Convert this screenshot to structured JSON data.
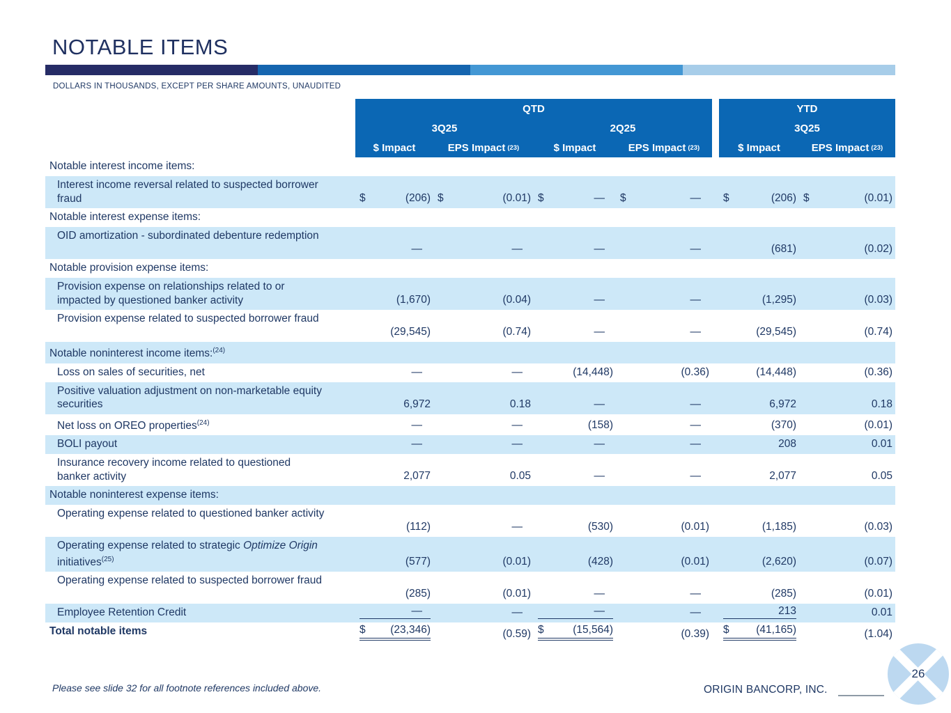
{
  "page": {
    "title": "NOTABLE ITEMS",
    "subtitle": "DOLLARS IN THOUSANDS, EXCEPT PER SHARE AMOUNTS, UNAUDITED",
    "footer_note": "Please see slide 32 for all footnote references included above.",
    "footer_brand": "ORIGIN BANCORP, INC.",
    "page_number": "26"
  },
  "colors": {
    "navy_text": "#1F3864",
    "title_navy": "#1F3060",
    "header_blue": "#0B67B4",
    "row_blue": "#CDE8F8",
    "badge_blue": "#BCD8F0",
    "bar_segments": [
      "#262C66",
      "#1565AF",
      "#4397D4",
      "#A7CDE9"
    ]
  },
  "table": {
    "groups": {
      "qtd": "QTD",
      "ytd": "YTD"
    },
    "periods": {
      "q3": "3Q25",
      "q2": "2Q25",
      "ytd_q3": "3Q25"
    },
    "col_headers": {
      "dollar": "$ Impact",
      "eps": "EPS Impact",
      "eps_sup": "(23)"
    },
    "rows": [
      {
        "type": "section",
        "shade": false,
        "parts": [
          {
            "t": "Notable interest income items:"
          }
        ]
      },
      {
        "type": "item",
        "lines": 2,
        "shade": true,
        "parts": [
          {
            "t": "Interest income reversal related to suspected borrower fraud"
          }
        ],
        "values": [
          {
            "d": "$",
            "v": "(206)"
          },
          {
            "d": "$",
            "v": "(0.01)"
          },
          {
            "d": "$",
            "v": "—"
          },
          {
            "d": "$",
            "v": "—"
          },
          {
            "d": "$",
            "v": "(206)"
          },
          {
            "d": "$",
            "v": "(0.01)"
          }
        ]
      },
      {
        "type": "section",
        "shade": false,
        "parts": [
          {
            "t": "Notable interest expense items:"
          }
        ]
      },
      {
        "type": "item",
        "lines": 2,
        "shade": true,
        "parts": [
          {
            "t": "OID amortization - subordinated debenture redemption"
          }
        ],
        "values": [
          {
            "v": "—"
          },
          {
            "v": "—"
          },
          {
            "v": "—"
          },
          {
            "v": "—"
          },
          {
            "v": "(681)"
          },
          {
            "v": "(0.02)"
          }
        ]
      },
      {
        "type": "section",
        "shade": false,
        "parts": [
          {
            "t": "Notable provision expense items:"
          }
        ]
      },
      {
        "type": "item",
        "lines": 2,
        "shade": true,
        "parts": [
          {
            "t": "Provision expense on relationships related to or impacted by questioned banker activity"
          }
        ],
        "values": [
          {
            "v": "(1,670)"
          },
          {
            "v": "(0.04)"
          },
          {
            "v": "—"
          },
          {
            "v": "—"
          },
          {
            "v": "(1,295)"
          },
          {
            "v": "(0.03)"
          }
        ]
      },
      {
        "type": "item",
        "lines": 2,
        "shade": false,
        "parts": [
          {
            "t": "Provision expense related to suspected borrower fraud"
          }
        ],
        "values": [
          {
            "v": "(29,545)"
          },
          {
            "v": "(0.74)"
          },
          {
            "v": "—"
          },
          {
            "v": "—"
          },
          {
            "v": "(29,545)"
          },
          {
            "v": "(0.74)"
          }
        ]
      },
      {
        "type": "section",
        "shade": true,
        "parts": [
          {
            "t": "Notable noninterest income items:"
          },
          {
            "t": "(24)",
            "sup": true
          }
        ]
      },
      {
        "type": "item",
        "lines": 1,
        "shade": false,
        "parts": [
          {
            "t": "Loss on sales of securities, net"
          }
        ],
        "values": [
          {
            "v": "—"
          },
          {
            "v": "—"
          },
          {
            "v": "(14,448)"
          },
          {
            "v": "(0.36)"
          },
          {
            "v": "(14,448)"
          },
          {
            "v": "(0.36)"
          }
        ]
      },
      {
        "type": "item",
        "lines": 2,
        "shade": true,
        "parts": [
          {
            "t": "Positive valuation adjustment on non-marketable equity securities"
          }
        ],
        "values": [
          {
            "v": "6,972"
          },
          {
            "v": "0.18"
          },
          {
            "v": "—"
          },
          {
            "v": "—"
          },
          {
            "v": "6,972"
          },
          {
            "v": "0.18"
          }
        ]
      },
      {
        "type": "item",
        "lines": 1,
        "shade": false,
        "parts": [
          {
            "t": "Net loss on OREO properties"
          },
          {
            "t": "(24)",
            "sup": true
          }
        ],
        "values": [
          {
            "v": "—"
          },
          {
            "v": "—"
          },
          {
            "v": "(158)"
          },
          {
            "v": "—"
          },
          {
            "v": "(370)"
          },
          {
            "v": "(0.01)"
          }
        ]
      },
      {
        "type": "item",
        "lines": 1,
        "shade": true,
        "parts": [
          {
            "t": "BOLI payout"
          }
        ],
        "values": [
          {
            "v": "—"
          },
          {
            "v": "—"
          },
          {
            "v": "—"
          },
          {
            "v": "—"
          },
          {
            "v": "208"
          },
          {
            "v": "0.01"
          }
        ]
      },
      {
        "type": "item",
        "lines": 2,
        "shade": false,
        "parts": [
          {
            "t": "Insurance recovery income related to questioned banker activity"
          }
        ],
        "values": [
          {
            "v": "2,077"
          },
          {
            "v": "0.05"
          },
          {
            "v": "—"
          },
          {
            "v": "—"
          },
          {
            "v": "2,077"
          },
          {
            "v": "0.05"
          }
        ]
      },
      {
        "type": "section",
        "shade": true,
        "parts": [
          {
            "t": "Notable noninterest expense items:"
          }
        ]
      },
      {
        "type": "item",
        "lines": 2,
        "shade": false,
        "parts": [
          {
            "t": "Operating expense related to questioned banker activity"
          }
        ],
        "values": [
          {
            "v": "(112)"
          },
          {
            "v": "—"
          },
          {
            "v": "(530)"
          },
          {
            "v": "(0.01)"
          },
          {
            "v": "(1,185)"
          },
          {
            "v": "(0.03)"
          }
        ]
      },
      {
        "type": "item",
        "lines": 2,
        "shade": true,
        "parts": [
          {
            "t": "Operating expense related to strategic "
          },
          {
            "t": "Optimize Origin",
            "i": true
          },
          {
            "t": " initiatives"
          },
          {
            "t": "(25)",
            "sup": true
          }
        ],
        "values": [
          {
            "v": "(577)"
          },
          {
            "v": "(0.01)"
          },
          {
            "v": "(428)"
          },
          {
            "v": "(0.01)"
          },
          {
            "v": "(2,620)"
          },
          {
            "v": "(0.07)"
          }
        ]
      },
      {
        "type": "item",
        "lines": 2,
        "shade": false,
        "parts": [
          {
            "t": "Operating expense related to suspected borrower fraud"
          }
        ],
        "values": [
          {
            "v": "(285)"
          },
          {
            "v": "(0.01)"
          },
          {
            "v": "—"
          },
          {
            "v": "—"
          },
          {
            "v": "(285)"
          },
          {
            "v": "(0.01)"
          }
        ]
      },
      {
        "type": "item",
        "lines": 1,
        "shade": true,
        "parts": [
          {
            "t": "Employee Retention Credit"
          }
        ],
        "values": [
          {
            "v": "—",
            "rule": "single"
          },
          {
            "v": "—"
          },
          {
            "v": "—",
            "rule": "single"
          },
          {
            "v": "—"
          },
          {
            "v": "213",
            "rule": "single"
          },
          {
            "v": "0.01"
          }
        ]
      },
      {
        "type": "total",
        "shade": false,
        "parts": [
          {
            "t": "Total notable items"
          }
        ],
        "values": [
          {
            "d": "$",
            "v": "(23,346)",
            "rule": "double"
          },
          {
            "v": "(0.59)"
          },
          {
            "d": "$",
            "v": "(15,564)",
            "rule": "double"
          },
          {
            "v": "(0.39)"
          },
          {
            "d": "$",
            "v": "(41,165)",
            "rule": "double"
          },
          {
            "v": "(1.04)"
          }
        ]
      }
    ]
  }
}
